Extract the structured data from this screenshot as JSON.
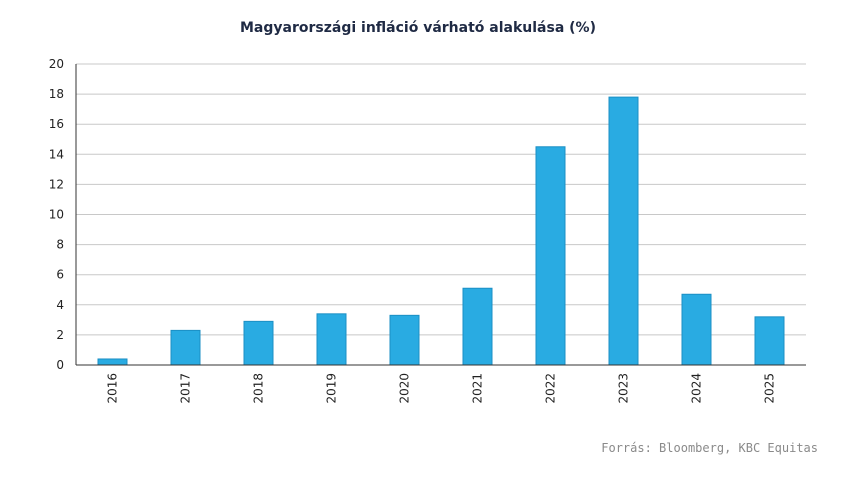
{
  "chart_data": {
    "type": "bar",
    "title": "Magyarországi infláció várható alakulása (%)",
    "categories": [
      "2016",
      "2017",
      "2018",
      "2019",
      "2020",
      "2021",
      "2022",
      "2023",
      "2024",
      "2025"
    ],
    "values": [
      0.4,
      2.3,
      2.9,
      3.4,
      3.3,
      5.1,
      14.5,
      17.8,
      4.7,
      3.2
    ],
    "ylim": [
      0,
      20
    ],
    "yticks": [
      0,
      2,
      4,
      6,
      8,
      10,
      12,
      14,
      16,
      18,
      20
    ],
    "grid": true,
    "bar_color": "#29abe2",
    "bar_edge_color": "#1b8fc4",
    "xlabel": "",
    "ylabel": ""
  },
  "source": "Forrás: Bloomberg, KBC Equitas"
}
